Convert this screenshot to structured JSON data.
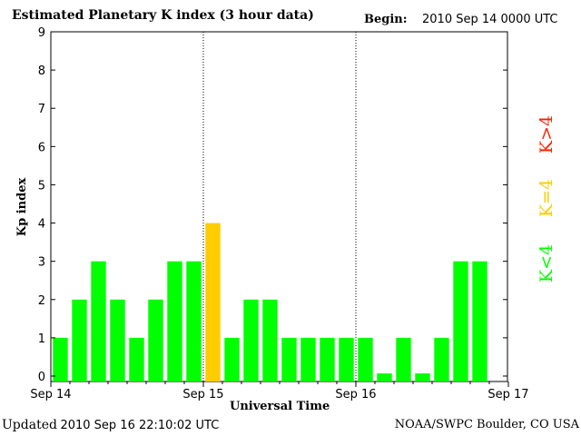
{
  "header": {
    "title": "Estimated Planetary K index (3 hour data)",
    "begin_label": "Begin:",
    "begin_value": "2010 Sep 14 0000 UTC"
  },
  "footer": {
    "updated_label": "Updated",
    "updated_value": "2010 Sep 16 22:10:02 UTC",
    "source": "NOAA/SWPC Boulder, CO USA"
  },
  "legend": {
    "above": "K>4",
    "equal": "K=4",
    "below": "K<4"
  },
  "colors": {
    "below": "#00ff00",
    "equal": "#ffcc00",
    "above": "#ff2200"
  },
  "chart_data": {
    "type": "bar",
    "title": "Estimated Planetary K index (3 hour data)",
    "xlabel": "Universal Time",
    "ylabel": "Kp index",
    "ylim": [
      0,
      9
    ],
    "yticks": [
      "0",
      "1",
      "2",
      "3",
      "4",
      "5",
      "6",
      "7",
      "8",
      "9"
    ],
    "xticks": [
      "Sep 14",
      "Sep 15",
      "Sep 16",
      "Sep 17"
    ],
    "day_dividers": [
      "Sep 15",
      "Sep 16"
    ],
    "interval_hours": 3,
    "values": [
      1,
      2,
      3,
      2,
      1,
      2,
      3,
      3,
      4,
      1,
      2,
      2,
      1,
      1,
      1,
      1,
      1,
      0.07,
      1,
      0.07,
      1,
      3,
      3
    ],
    "grid": false
  }
}
